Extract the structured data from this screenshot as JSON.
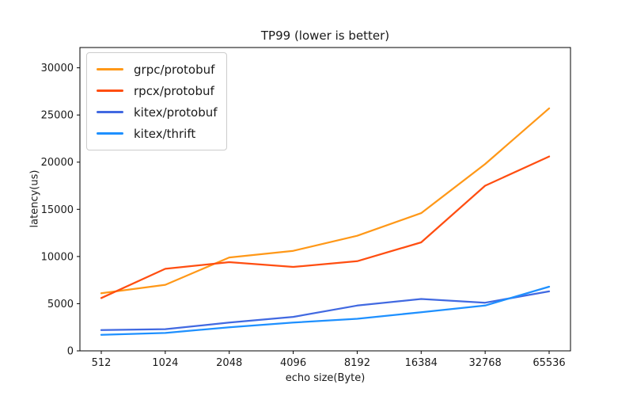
{
  "chart_data": {
    "type": "line",
    "title": "TP99 (lower is better)",
    "xlabel": "echo size(Byte)",
    "ylabel": "latency(us)",
    "categories": [
      "512",
      "1024",
      "2048",
      "4096",
      "8192",
      "16384",
      "32768",
      "65536"
    ],
    "yticks": [
      0,
      5000,
      10000,
      15000,
      20000,
      25000,
      30000
    ],
    "ylim": [
      0,
      32150
    ],
    "grid": false,
    "legend_position": "upper left",
    "series": [
      {
        "name": "grpc/protobuf",
        "color": "#FF9818",
        "values": [
          6100,
          7000,
          9900,
          10600,
          12200,
          14600,
          19800,
          25700
        ]
      },
      {
        "name": "rpcx/protobuf",
        "color": "#FF4E11",
        "values": [
          5600,
          8700,
          9400,
          8900,
          9500,
          11500,
          17500,
          20600
        ]
      },
      {
        "name": "kitex/protobuf",
        "color": "#4169E1",
        "values": [
          2200,
          2300,
          3000,
          3600,
          4800,
          5500,
          5100,
          6300
        ]
      },
      {
        "name": "kitex/thrift",
        "color": "#1E90FF",
        "values": [
          1700,
          1900,
          2500,
          3000,
          3400,
          4100,
          4800,
          6800
        ]
      }
    ]
  }
}
